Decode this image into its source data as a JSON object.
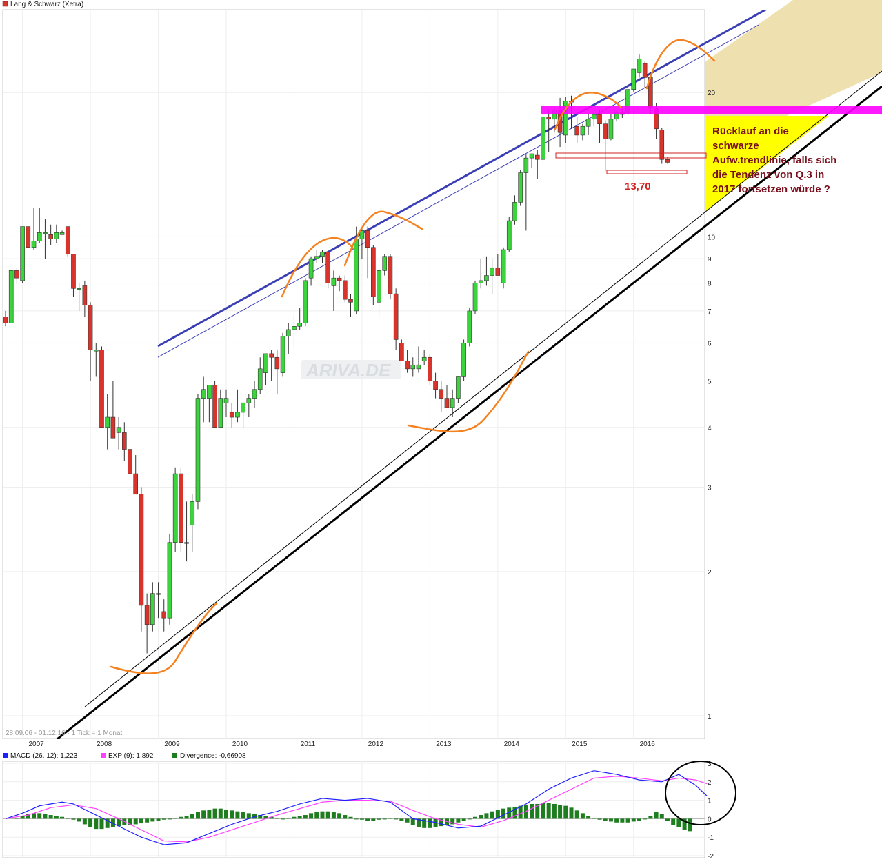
{
  "title": "Lang & Schwarz (Xetra)",
  "watermark": "ARIVA.DE",
  "range_label": "28.09.06 - 01.12.16 · 1 Tick = 1 Monat",
  "annotation": {
    "lines": [
      "Rücklauf an die",
      "schwarze",
      "Aufw.trendlinie, falls sich",
      "die Tendenz von Q.3 in",
      "2017 fortsetzen würde ?"
    ],
    "price_label": "13,70"
  },
  "colors": {
    "up": "#3cd43c",
    "down": "#d9342c",
    "trend_blue": "#3b3fb5",
    "magenta": "#ff00ff",
    "orange": "#f58220",
    "macd": "#2020ff",
    "signal": "#ff40ff",
    "divergence": "#1e7d1e",
    "target_fill": "#ffff00",
    "zone_fill": "#efe0b0"
  },
  "chart_data": [
    {
      "type": "candlestick",
      "title": "Lang & Schwarz (Xetra)",
      "scale": "log",
      "ylim": [
        0.9,
        30
      ],
      "y_ticks": [
        "1",
        "2",
        "3",
        "4",
        "5",
        "6",
        "7",
        "8",
        "9",
        "10",
        "20"
      ],
      "x_ticks": [
        "2007",
        "2008",
        "2009",
        "2010",
        "2011",
        "2012",
        "2013",
        "2014",
        "2015",
        "2016"
      ],
      "start": "2006-10",
      "interval": "1 Monat",
      "ohlc": [
        [
          6.8,
          7.0,
          6.5,
          6.6
        ],
        [
          6.6,
          8.5,
          6.6,
          8.5
        ],
        [
          8.5,
          8.6,
          8.0,
          8.2
        ],
        [
          8.1,
          10.5,
          8.0,
          10.5
        ],
        [
          10.5,
          10.5,
          9.5,
          9.5
        ],
        [
          9.5,
          11.5,
          9.4,
          9.8
        ],
        [
          9.8,
          11.5,
          9.7,
          10.2
        ],
        [
          10.2,
          10.9,
          9.0,
          10.2
        ],
        [
          10.1,
          10.6,
          9.6,
          9.9
        ],
        [
          9.9,
          10.6,
          9.7,
          10.2
        ],
        [
          10.1,
          10.3,
          10.1,
          10.2
        ],
        [
          10.5,
          10.5,
          9.1,
          9.2
        ],
        [
          9.2,
          9.2,
          7.5,
          7.8
        ],
        [
          7.8,
          8.0,
          7.0,
          7.8
        ],
        [
          7.9,
          8.1,
          6.8,
          7.2
        ],
        [
          7.2,
          7.3,
          5.0,
          5.8
        ],
        [
          5.8,
          6.0,
          5.1,
          5.8
        ],
        [
          5.8,
          5.9,
          4.0,
          4.0
        ],
        [
          4.0,
          4.7,
          3.6,
          4.2
        ],
        [
          4.2,
          5.0,
          3.9,
          3.8
        ],
        [
          3.9,
          4.2,
          3.6,
          4.0
        ],
        [
          3.9,
          4.1,
          3.4,
          3.6
        ],
        [
          3.6,
          3.9,
          3.3,
          3.2
        ],
        [
          3.2,
          3.5,
          2.9,
          2.9
        ],
        [
          2.9,
          3.0,
          1.5,
          1.7
        ],
        [
          1.7,
          1.8,
          1.35,
          1.55
        ],
        [
          1.55,
          1.9,
          1.5,
          1.8
        ],
        [
          1.8,
          1.9,
          1.6,
          1.8
        ],
        [
          1.65,
          1.75,
          1.5,
          1.6
        ],
        [
          1.6,
          2.4,
          1.55,
          2.3
        ],
        [
          2.3,
          3.3,
          2.2,
          3.2
        ],
        [
          3.2,
          3.3,
          2.2,
          2.3
        ],
        [
          2.3,
          2.8,
          2.1,
          2.3
        ],
        [
          2.5,
          2.9,
          2.2,
          2.8
        ],
        [
          2.8,
          4.7,
          2.7,
          4.6
        ],
        [
          4.6,
          5.1,
          4.1,
          4.8
        ],
        [
          4.6,
          4.8,
          4.1,
          4.9
        ],
        [
          4.9,
          5.0,
          4.0,
          4.0
        ],
        [
          4.0,
          4.8,
          4.0,
          4.6
        ],
        [
          4.5,
          4.8,
          4.2,
          4.6
        ],
        [
          4.3,
          4.5,
          4.0,
          4.2
        ],
        [
          4.2,
          4.8,
          4.1,
          4.3
        ],
        [
          4.3,
          4.5,
          4.0,
          4.5
        ],
        [
          4.5,
          4.7,
          4.2,
          4.6
        ],
        [
          4.6,
          5.0,
          4.4,
          4.8
        ],
        [
          4.8,
          5.6,
          4.7,
          5.3
        ],
        [
          5.2,
          5.7,
          4.9,
          5.7
        ],
        [
          5.7,
          5.8,
          5.0,
          5.6
        ],
        [
          5.6,
          5.8,
          4.7,
          5.3
        ],
        [
          5.2,
          6.3,
          5.1,
          6.2
        ],
        [
          6.2,
          6.6,
          5.7,
          6.4
        ],
        [
          6.4,
          6.9,
          5.9,
          6.5
        ],
        [
          6.5,
          7.1,
          6.4,
          6.6
        ],
        [
          6.6,
          8.2,
          6.5,
          8.1
        ],
        [
          8.2,
          9.1,
          7.9,
          9.0
        ],
        [
          9.0,
          9.4,
          8.8,
          9.1
        ],
        [
          9.1,
          9.4,
          8.8,
          9.3
        ],
        [
          9.3,
          9.3,
          7.8,
          8.0
        ],
        [
          7.9,
          8.5,
          7.0,
          8.2
        ],
        [
          8.2,
          8.3,
          7.7,
          8.1
        ],
        [
          8.1,
          8.3,
          7.3,
          7.4
        ],
        [
          7.4,
          7.6,
          6.8,
          7.3
        ],
        [
          7.0,
          10.5,
          6.9,
          9.9
        ],
        [
          9.9,
          10.5,
          9.0,
          10.3
        ],
        [
          10.3,
          10.5,
          8.2,
          9.5
        ],
        [
          9.5,
          9.6,
          7.2,
          7.5
        ],
        [
          7.3,
          8.6,
          6.8,
          8.5
        ],
        [
          8.5,
          9.2,
          8.3,
          9.1
        ],
        [
          9.1,
          9.2,
          7.4,
          7.6
        ],
        [
          7.6,
          7.8,
          5.8,
          6.1
        ],
        [
          6.0,
          6.1,
          5.5,
          5.5
        ],
        [
          5.5,
          5.8,
          5.2,
          5.3
        ],
        [
          5.3,
          5.6,
          5.1,
          5.4
        ],
        [
          5.3,
          5.9,
          5.2,
          5.4
        ],
        [
          5.5,
          5.8,
          5.4,
          5.6
        ],
        [
          5.6,
          5.7,
          4.9,
          5.0
        ],
        [
          5.0,
          5.2,
          4.6,
          4.8
        ],
        [
          4.8,
          5.0,
          4.3,
          4.6
        ],
        [
          4.6,
          4.9,
          4.4,
          4.4
        ],
        [
          4.4,
          4.8,
          4.2,
          4.6
        ],
        [
          4.6,
          5.1,
          4.5,
          5.1
        ],
        [
          5.1,
          6.1,
          5.0,
          6.0
        ],
        [
          6.0,
          7.1,
          5.9,
          7.0
        ],
        [
          7.0,
          8.1,
          6.9,
          8.0
        ],
        [
          8.0,
          9.0,
          7.8,
          8.1
        ],
        [
          8.1,
          9.1,
          7.9,
          8.3
        ],
        [
          8.3,
          9.0,
          7.6,
          8.6
        ],
        [
          8.6,
          9.2,
          8.3,
          8.3
        ],
        [
          8.0,
          9.5,
          7.8,
          9.4
        ],
        [
          9.4,
          11.0,
          9.3,
          10.8
        ],
        [
          10.8,
          12.2,
          10.6,
          11.8
        ],
        [
          11.8,
          13.8,
          11.6,
          13.6
        ],
        [
          13.6,
          14.9,
          10.3,
          14.6
        ],
        [
          14.6,
          14.9,
          13.9,
          14.9
        ],
        [
          14.8,
          15.2,
          13.2,
          14.5
        ],
        [
          14.5,
          18.0,
          14.3,
          17.8
        ],
        [
          17.8,
          18.4,
          15.0,
          17.6
        ],
        [
          17.6,
          18.6,
          16.5,
          18.4
        ],
        [
          18.4,
          19.5,
          15.4,
          16.5
        ],
        [
          16.3,
          19.6,
          15.7,
          19.2
        ],
        [
          19.2,
          19.7,
          16.8,
          19.1
        ],
        [
          17.0,
          17.8,
          15.7,
          16.3
        ],
        [
          16.3,
          17.2,
          15.9,
          17.0
        ],
        [
          17.0,
          18.0,
          16.3,
          17.6
        ],
        [
          17.6,
          18.2,
          17.0,
          18.0
        ],
        [
          18.0,
          18.4,
          15.7,
          17.2
        ],
        [
          17.2,
          17.5,
          13.7,
          16.0
        ],
        [
          16.0,
          18.0,
          15.9,
          17.6
        ],
        [
          17.6,
          18.3,
          17.4,
          18.2
        ],
        [
          18.2,
          18.5,
          17.7,
          18.0
        ],
        [
          18.1,
          20.3,
          17.9,
          20.3
        ],
        [
          20.3,
          22.4,
          20.1,
          22.4
        ],
        [
          22.0,
          24.0,
          21.5,
          23.5
        ],
        [
          23.0,
          23.2,
          20.5,
          21.5
        ],
        [
          21.5,
          22.0,
          18.0,
          18.6
        ],
        [
          18.5,
          19.0,
          16.0,
          16.8
        ],
        [
          16.7,
          16.9,
          14.2,
          14.5
        ],
        [
          14.5,
          14.7,
          14.2,
          14.3
        ]
      ]
    },
    {
      "type": "line",
      "title": "MACD",
      "ylim": [
        -2,
        3
      ],
      "y_ticks": [
        "3",
        "2",
        "1",
        "0",
        "-1",
        "-2"
      ],
      "series": [
        {
          "name": "MACD (26, 12): 1,223",
          "points": [
            [
              0,
              0
            ],
            [
              3,
              0.3
            ],
            [
              6,
              0.7
            ],
            [
              10,
              0.9
            ],
            [
              12,
              0.8
            ],
            [
              16,
              0.2
            ],
            [
              20,
              -0.4
            ],
            [
              24,
              -1
            ],
            [
              28,
              -1.4
            ],
            [
              32,
              -1.3
            ],
            [
              36,
              -0.8
            ],
            [
              40,
              -0.3
            ],
            [
              44,
              0.1
            ],
            [
              48,
              0.4
            ],
            [
              52,
              0.8
            ],
            [
              56,
              1.1
            ],
            [
              60,
              1
            ],
            [
              64,
              1.1
            ],
            [
              68,
              0.9
            ],
            [
              72,
              0
            ],
            [
              76,
              -0.2
            ],
            [
              80,
              -0.5
            ],
            [
              84,
              -0.4
            ],
            [
              88,
              0.2
            ],
            [
              92,
              0.8
            ],
            [
              96,
              1.6
            ],
            [
              100,
              2.2
            ],
            [
              104,
              2.6
            ],
            [
              108,
              2.4
            ],
            [
              112,
              2.1
            ],
            [
              116,
              2
            ],
            [
              119,
              2.4
            ],
            [
              122,
              1.8
            ],
            [
              124,
              1.223
            ]
          ]
        },
        {
          "name": "EXP (9): 1,892",
          "points": [
            [
              0,
              0
            ],
            [
              4,
              0.2
            ],
            [
              8,
              0.6
            ],
            [
              12,
              0.75
            ],
            [
              16,
              0.55
            ],
            [
              20,
              0
            ],
            [
              24,
              -0.6
            ],
            [
              28,
              -1.2
            ],
            [
              32,
              -1.25
            ],
            [
              36,
              -1.0
            ],
            [
              40,
              -0.6
            ],
            [
              44,
              -0.2
            ],
            [
              48,
              0.2
            ],
            [
              52,
              0.55
            ],
            [
              56,
              0.9
            ],
            [
              60,
              1
            ],
            [
              64,
              1.0
            ],
            [
              68,
              0.95
            ],
            [
              72,
              0.45
            ],
            [
              76,
              0
            ],
            [
              80,
              -0.3
            ],
            [
              84,
              -0.45
            ],
            [
              88,
              -0.1
            ],
            [
              92,
              0.4
            ],
            [
              96,
              1.0
            ],
            [
              100,
              1.6
            ],
            [
              104,
              2.2
            ],
            [
              108,
              2.3
            ],
            [
              112,
              2.2
            ],
            [
              116,
              2.05
            ],
            [
              119,
              2.2
            ],
            [
              122,
              2.1
            ],
            [
              124,
              1.892
            ]
          ]
        }
      ],
      "divergence": {
        "name": "Divergence: -0,66908",
        "values": [
          0.05,
          0.15,
          0.25,
          0.3,
          0.3,
          0.25,
          0.2,
          0.15,
          0.1,
          0.05,
          -0.05,
          -0.15,
          -0.3,
          -0.45,
          -0.55,
          -0.55,
          -0.5,
          -0.45,
          -0.4,
          -0.35,
          -0.35,
          -0.3,
          -0.25,
          -0.2,
          -0.15,
          -0.1,
          -0.05,
          0.0,
          0.05,
          0.1,
          0.15,
          0.25,
          0.35,
          0.45,
          0.5,
          0.55,
          0.55,
          0.5,
          0.45,
          0.4,
          0.35,
          0.3,
          0.25,
          0.2,
          0.15,
          0.1,
          0.05,
          0.0,
          0.05,
          0.1,
          0.15,
          0.2,
          0.3,
          0.35,
          0.4,
          0.4,
          0.35,
          0.3,
          0.2,
          0.1,
          0.0,
          -0.05,
          -0.1,
          -0.1,
          -0.05,
          0.0,
          0.05,
          0.0,
          -0.1,
          -0.2,
          -0.35,
          -0.45,
          -0.5,
          -0.5,
          -0.45,
          -0.4,
          -0.35,
          -0.3,
          -0.2,
          -0.1,
          0.0,
          0.1,
          0.2,
          0.3,
          0.4,
          0.5,
          0.55,
          0.6,
          0.65,
          0.7,
          0.75,
          0.8,
          0.8,
          0.85,
          0.85,
          0.8,
          0.75,
          0.7,
          0.6,
          0.45,
          0.3,
          0.15,
          0.05,
          -0.05,
          -0.1,
          -0.15,
          -0.2,
          -0.2,
          -0.2,
          -0.15,
          -0.1,
          0.0,
          0.15,
          0.35,
          0.25,
          -0.1,
          -0.35,
          -0.45,
          -0.6,
          -0.67
        ]
      },
      "x_ticks": [
        "2007",
        "2008",
        "2009",
        "2010",
        "2011",
        "2012",
        "2013",
        "2014",
        "2015",
        "2016"
      ]
    }
  ]
}
